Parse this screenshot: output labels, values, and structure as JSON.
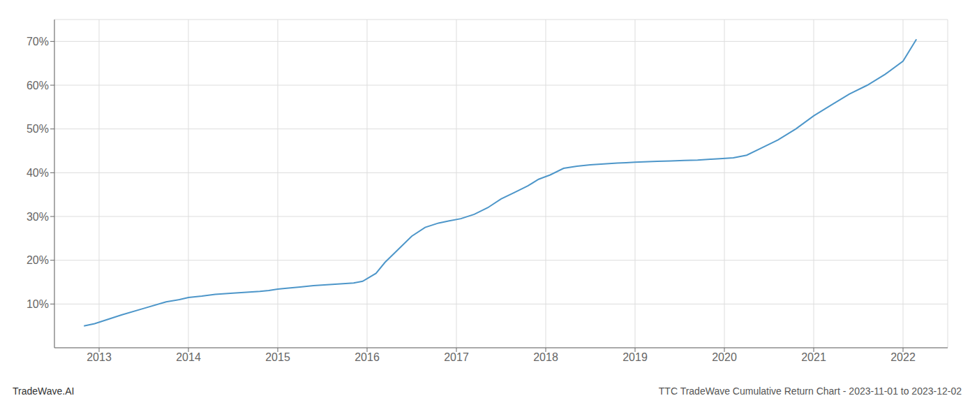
{
  "chart_data": {
    "type": "line",
    "title": "TTC TradeWave Cumulative Return Chart - 2023-11-01 to 2023-12-02",
    "annotations": [
      "TradeWave.AI"
    ],
    "color": "#4d96c9",
    "grid": true,
    "x": [
      2012.83,
      2012.95,
      2013.1,
      2013.25,
      2013.5,
      2013.75,
      2013.9,
      2014.0,
      2014.15,
      2014.3,
      2014.5,
      2014.65,
      2014.8,
      2014.9,
      2015.0,
      2015.1,
      2015.25,
      2015.4,
      2015.55,
      2015.7,
      2015.85,
      2015.95,
      2016.1,
      2016.2,
      2016.35,
      2016.5,
      2016.65,
      2016.8,
      2016.92,
      2017.05,
      2017.2,
      2017.35,
      2017.5,
      2017.65,
      2017.8,
      2017.92,
      2018.05,
      2018.2,
      2018.35,
      2018.5,
      2018.65,
      2018.8,
      2018.9,
      2019.0,
      2019.1,
      2019.25,
      2019.4,
      2019.55,
      2019.7,
      2019.85,
      2019.95,
      2020.1,
      2020.25,
      2020.4,
      2020.6,
      2020.8,
      2021.0,
      2021.2,
      2021.4,
      2021.6,
      2021.8,
      2022.0,
      2022.15
    ],
    "values": [
      5.0,
      5.5,
      6.5,
      7.5,
      9.0,
      10.5,
      11.0,
      11.5,
      11.8,
      12.2,
      12.5,
      12.7,
      12.9,
      13.1,
      13.4,
      13.6,
      13.9,
      14.2,
      14.4,
      14.6,
      14.8,
      15.2,
      17.0,
      19.5,
      22.5,
      25.5,
      27.5,
      28.5,
      29.0,
      29.5,
      30.5,
      32.0,
      34.0,
      35.5,
      37.0,
      38.5,
      39.5,
      41.0,
      41.5,
      41.8,
      42.0,
      42.2,
      42.3,
      42.4,
      42.5,
      42.6,
      42.7,
      42.8,
      42.9,
      43.1,
      43.2,
      43.4,
      44.0,
      45.5,
      47.5,
      50.0,
      53.0,
      55.5,
      58.0,
      60.0,
      62.5,
      65.5,
      70.5
    ],
    "xlim": [
      2012.5,
      2022.5
    ],
    "xticks": [
      2013,
      2014,
      2015,
      2016,
      2017,
      2018,
      2019,
      2020,
      2021,
      2022
    ],
    "ylim": [
      0,
      75
    ],
    "yticks": [
      {
        "value": 10,
        "label": "10%"
      },
      {
        "value": 20,
        "label": "20%"
      },
      {
        "value": 30,
        "label": "30%"
      },
      {
        "value": 40,
        "label": "40%"
      },
      {
        "value": 50,
        "label": "50%"
      },
      {
        "value": 60,
        "label": "60%"
      },
      {
        "value": 70,
        "label": "70%"
      }
    ]
  }
}
